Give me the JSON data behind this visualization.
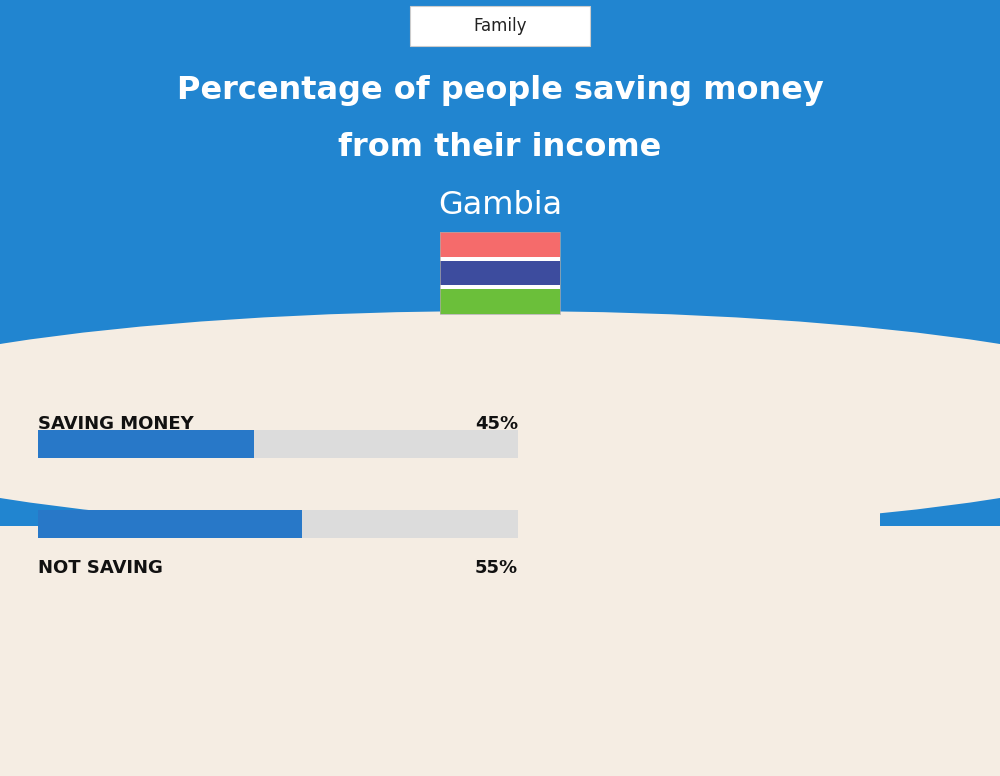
{
  "title_line1": "Percentage of people saving money",
  "title_line2": "from their income",
  "country": "Gambia",
  "tab_label": "Family",
  "saving_label": "SAVING MONEY",
  "saving_value": 45,
  "saving_pct_text": "45%",
  "not_saving_label": "NOT SAVING",
  "not_saving_value": 55,
  "not_saving_pct_text": "55%",
  "bar_blue": "#2878C8",
  "bar_bg": "#DCDCDC",
  "bg_top": "#2185D0",
  "bg_bottom": "#F5EDE3",
  "text_white": "#FFFFFF",
  "text_dark": "#111111",
  "flag_red": "#F56B6B",
  "flag_blue": "#3D4C9E",
  "flag_green": "#6BBF3A",
  "flag_white": "#FFFFFF",
  "bar_height": 0.28,
  "bar_max": 100
}
